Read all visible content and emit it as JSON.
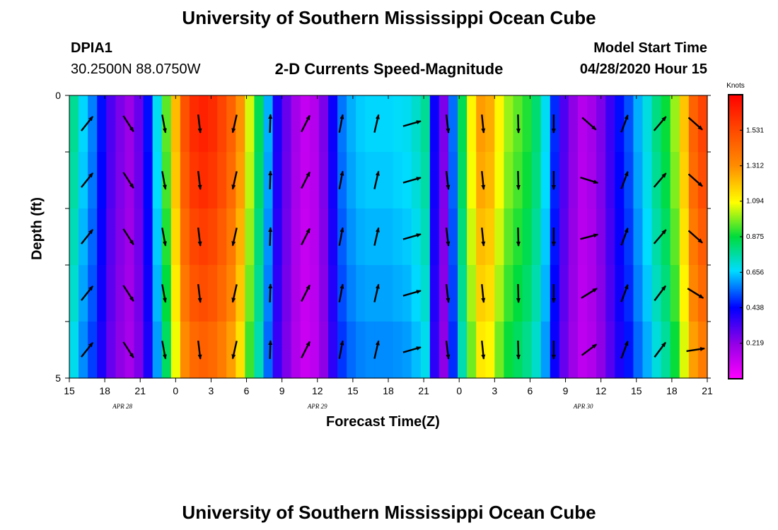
{
  "header": {
    "title": "University of Southern Mississippi Ocean Cube",
    "station_id": "DPIA1",
    "station_coords": "30.2500N 88.0750W",
    "chart_subtitle": "2-D Currents Speed-Magnitude",
    "model_start_label": "Model Start Time",
    "model_start_value": "04/28/2020 Hour 15"
  },
  "footer": {
    "title": "University of Southern Mississippi Ocean Cube"
  },
  "chart_data": {
    "type": "heatmap",
    "title": "2-D Currents Speed-Magnitude",
    "xlabel": "Forecast Time(Z)",
    "ylabel": "Depth (ft)",
    "x_tick_labels": [
      "15",
      "18",
      "21",
      "0",
      "3",
      "6",
      "9",
      "12",
      "15",
      "18",
      "21",
      "0",
      "3",
      "6",
      "9",
      "12",
      "15",
      "18",
      "21"
    ],
    "date_labels": [
      {
        "text": "APR  28",
        "at_tick": 1.5
      },
      {
        "text": "APR  29",
        "at_tick": 7
      },
      {
        "text": "APR  30",
        "at_tick": 14.5
      }
    ],
    "x_range_hours": [
      0,
      54
    ],
    "y_tick_labels": [
      "0",
      "5"
    ],
    "ylim": [
      0,
      5
    ],
    "y_inverted": true,
    "n_depth_bands": 5,
    "colorbar": {
      "title": "Knots",
      "range": [
        0,
        1.75
      ],
      "tick_labels": [
        "0.219",
        "0.438",
        "0.656",
        "0.875",
        "1.094",
        "1.312",
        "1.531"
      ],
      "tick_values": [
        0.219,
        0.438,
        0.656,
        0.875,
        1.094,
        1.312,
        1.531
      ]
    },
    "speed_columns_knots": [
      0.78,
      0.66,
      0.57,
      0.45,
      0.32,
      0.25,
      0.2,
      0.28,
      0.45,
      0.68,
      0.95,
      1.22,
      1.5,
      1.62,
      1.65,
      1.62,
      1.55,
      1.45,
      1.3,
      1.05,
      0.85,
      0.62,
      0.4,
      0.28,
      0.18,
      0.12,
      0.15,
      0.25,
      0.42,
      0.56,
      0.62,
      0.65,
      0.66,
      0.66,
      0.66,
      0.67,
      0.68,
      0.72,
      0.78,
      0.42,
      0.25,
      0.55,
      0.85,
      1.1,
      1.28,
      1.25,
      1.1,
      1.0,
      0.95,
      0.9,
      0.82,
      0.68,
      0.48,
      0.32,
      0.22,
      0.15,
      0.18,
      0.25,
      0.35,
      0.45,
      0.52,
      0.62,
      0.7,
      0.8,
      0.88,
      1.0,
      1.2,
      1.45,
      1.55
    ],
    "depth_factors": [
      1.0,
      0.98,
      0.95,
      0.92,
      0.88
    ],
    "arrows": [
      {
        "hour": 1.5,
        "dx": [
          0.62,
          0.62,
          0.62,
          0.62,
          0.62
        ],
        "dy": [
          0.78,
          0.78,
          0.78,
          0.78,
          0.78
        ]
      },
      {
        "hour": 5,
        "dx": [
          0.55,
          0.55,
          0.55,
          0.55,
          0.55
        ],
        "dy": [
          -0.85,
          -0.85,
          -0.85,
          -0.85,
          -0.85
        ]
      },
      {
        "hour": 8,
        "dx": [
          0.18,
          0.18,
          0.18,
          0.18,
          0.18
        ],
        "dy": [
          -0.98,
          -0.98,
          -0.98,
          -0.98,
          -0.98
        ]
      },
      {
        "hour": 11,
        "dx": [
          0.12,
          0.12,
          0.12,
          0.12,
          0.12
        ],
        "dy": [
          -0.99,
          -0.99,
          -0.99,
          -0.99,
          -0.99
        ]
      },
      {
        "hour": 14,
        "dx": [
          -0.22,
          -0.22,
          -0.22,
          -0.22,
          -0.22
        ],
        "dy": [
          -0.97,
          -0.97,
          -0.97,
          -0.97,
          -0.97
        ]
      },
      {
        "hour": 17,
        "dx": [
          0.03,
          0.03,
          0.03,
          0.03,
          0.03
        ],
        "dy": [
          0.99,
          0.99,
          0.99,
          0.99,
          0.99
        ]
      },
      {
        "hour": 20,
        "dx": [
          0.45,
          0.45,
          0.45,
          0.45,
          0.45
        ],
        "dy": [
          0.89,
          0.89,
          0.89,
          0.89,
          0.89
        ]
      },
      {
        "hour": 23,
        "dx": [
          0.18,
          0.18,
          0.18,
          0.18,
          0.18
        ],
        "dy": [
          0.98,
          0.98,
          0.98,
          0.98,
          0.98
        ]
      },
      {
        "hour": 26,
        "dx": [
          0.22,
          0.22,
          0.22,
          0.22,
          0.22
        ],
        "dy": [
          0.97,
          0.97,
          0.97,
          0.97,
          0.97
        ]
      },
      {
        "hour": 29,
        "dx": [
          0.96,
          0.96,
          0.96,
          0.96,
          0.96
        ],
        "dy": [
          0.28,
          0.28,
          0.28,
          0.28,
          0.28
        ]
      },
      {
        "hour": 32,
        "dx": [
          0.12,
          0.12,
          0.12,
          0.12,
          0.12
        ],
        "dy": [
          -0.99,
          -0.99,
          -0.99,
          -0.99,
          -0.99
        ]
      },
      {
        "hour": 35,
        "dx": [
          0.1,
          0.1,
          0.1,
          0.1,
          0.1
        ],
        "dy": [
          -0.99,
          -0.99,
          -0.99,
          -0.99,
          -0.99
        ]
      },
      {
        "hour": 38,
        "dx": [
          0.03,
          0.03,
          0.03,
          0.03,
          0.03
        ],
        "dy": [
          -1.0,
          -1.0,
          -1.0,
          -1.0,
          -1.0
        ]
      },
      {
        "hour": 41,
        "dx": [
          0.0,
          0.0,
          0.0,
          0.0,
          0.0
        ],
        "dy": [
          -1.0,
          -1.0,
          -1.0,
          -1.0,
          -1.0
        ]
      },
      {
        "hour": 44,
        "dx": [
          0.75,
          0.95,
          0.95,
          0.85,
          0.8
        ],
        "dy": [
          -0.66,
          -0.3,
          0.25,
          0.52,
          0.6
        ]
      },
      {
        "hour": 47,
        "dx": [
          0.35,
          0.35,
          0.35,
          0.35,
          0.35
        ],
        "dy": [
          0.94,
          0.94,
          0.94,
          0.94,
          0.94
        ]
      },
      {
        "hour": 50,
        "dx": [
          0.65,
          0.65,
          0.65,
          0.6,
          0.6
        ],
        "dy": [
          0.76,
          0.76,
          0.76,
          0.8,
          0.8
        ]
      },
      {
        "hour": 53,
        "dx": [
          0.75,
          0.75,
          0.75,
          0.85,
          0.98
        ],
        "dy": [
          -0.66,
          -0.66,
          -0.66,
          -0.52,
          0.15
        ]
      }
    ]
  }
}
